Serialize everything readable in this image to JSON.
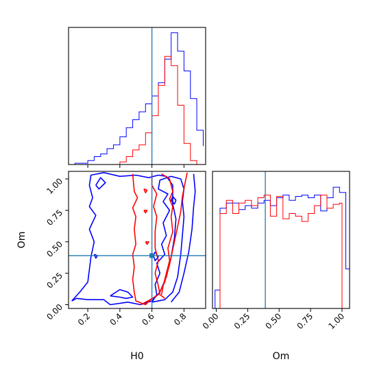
{
  "chart_data": {
    "type": "corner",
    "parameters": [
      "H0",
      "Om"
    ],
    "truth": {
      "H0": 0.6,
      "Om": 0.39,
      "color": "#1f77b4"
    },
    "series_colors": {
      "blue": "#0000ff",
      "red": "#ff0000"
    },
    "panels": [
      {
        "id": "hist-H0",
        "type": "histogram",
        "xlim": [
          0.08,
          0.935
        ],
        "ylim": [
          0,
          1.04
        ],
        "edges": [
          0.08,
          0.12,
          0.16,
          0.2,
          0.24,
          0.28,
          0.32,
          0.36,
          0.4,
          0.44,
          0.48,
          0.52,
          0.56,
          0.6,
          0.64,
          0.68,
          0.72,
          0.76,
          0.8,
          0.84,
          0.88,
          0.92
        ],
        "series": [
          {
            "color": "blue",
            "counts": [
              0,
              0.01,
              0.01,
              0.03,
              0.06,
              0.08,
              0.12,
              0.15,
              0.21,
              0.28,
              0.34,
              0.4,
              0.46,
              0.52,
              0.62,
              0.8,
              1.0,
              0.86,
              0.71,
              0.5,
              0.26,
              0.14
            ]
          },
          {
            "color": "red",
            "counts": [
              0,
              0,
              0,
              0,
              0,
              0,
              0,
              0,
              0.02,
              0.06,
              0.11,
              0.15,
              0.24,
              0.37,
              0.6,
              0.82,
              0.75,
              0.45,
              0.16,
              0.03,
              0,
              0
            ]
          }
        ]
      },
      {
        "id": "joint-H0-Om",
        "type": "contour",
        "xlabel": "H0",
        "ylabel": "Om",
        "xlim": [
          0.08,
          0.935
        ],
        "ylim": [
          -0.03,
          1.06
        ],
        "xticks": [
          0.2,
          0.4,
          0.6,
          0.8
        ],
        "xtick_labels": [
          "0.2",
          "0.4",
          "0.6",
          "0.8"
        ],
        "yticks": [
          0.0,
          0.25,
          0.5,
          0.75,
          1.0
        ],
        "ytick_labels": [
          "0.00",
          "0.25",
          "0.50",
          "0.75",
          "1.00"
        ],
        "contours": [
          {
            "color": "blue",
            "points": [
              [
                0.1,
                0.03
              ],
              [
                0.13,
                0.05
              ],
              [
                0.2,
                0.04
              ],
              [
                0.3,
                0.04
              ],
              [
                0.34,
                0.0
              ],
              [
                0.45,
                0.02
              ],
              [
                0.53,
                0.0
              ],
              [
                0.6,
                0.03
              ],
              [
                0.65,
                0.1
              ],
              [
                0.69,
                0.22
              ],
              [
                0.72,
                0.38
              ],
              [
                0.74,
                0.53
              ],
              [
                0.75,
                0.68
              ],
              [
                0.73,
                0.8
              ],
              [
                0.73,
                0.95
              ],
              [
                0.69,
                1.02
              ],
              [
                0.64,
                1.03
              ],
              [
                0.58,
                1.01
              ],
              [
                0.5,
                1.03
              ],
              [
                0.4,
                1.02
              ],
              [
                0.3,
                1.05
              ],
              [
                0.22,
                1.03
              ],
              [
                0.21,
                0.95
              ],
              [
                0.23,
                0.85
              ],
              [
                0.21,
                0.78
              ],
              [
                0.25,
                0.71
              ],
              [
                0.21,
                0.6
              ],
              [
                0.24,
                0.5
              ],
              [
                0.22,
                0.38
              ],
              [
                0.21,
                0.28
              ],
              [
                0.2,
                0.18
              ],
              [
                0.15,
                0.1
              ],
              [
                0.1,
                0.03
              ]
            ]
          },
          {
            "color": "blue",
            "points": [
              [
                0.34,
                0.07
              ],
              [
                0.4,
                0.06
              ],
              [
                0.44,
                0.05
              ],
              [
                0.48,
                0.06
              ],
              [
                0.45,
                0.1
              ],
              [
                0.4,
                0.12
              ],
              [
                0.34,
                0.07
              ]
            ]
          },
          {
            "color": "blue",
            "points": [
              [
                0.25,
                0.95
              ],
              [
                0.28,
                1.01
              ],
              [
                0.31,
                0.97
              ],
              [
                0.27,
                0.92
              ],
              [
                0.25,
                0.95
              ]
            ]
          },
          {
            "color": "blue",
            "points": [
              [
                0.24,
                0.4
              ],
              [
                0.26,
                0.39
              ],
              [
                0.25,
                0.37
              ],
              [
                0.24,
                0.4
              ]
            ]
          },
          {
            "color": "blue",
            "points": [
              [
                0.6,
                0.02
              ],
              [
                0.68,
                0.04
              ],
              [
                0.73,
                0.1
              ],
              [
                0.76,
                0.22
              ],
              [
                0.78,
                0.4
              ],
              [
                0.79,
                0.55
              ],
              [
                0.8,
                0.7
              ],
              [
                0.79,
                0.82
              ],
              [
                0.8,
                0.92
              ],
              [
                0.78,
                1.0
              ],
              [
                0.72,
                1.02
              ],
              [
                0.65,
                0.99
              ],
              [
                0.64,
                0.92
              ],
              [
                0.7,
                0.88
              ],
              [
                0.67,
                0.82
              ],
              [
                0.71,
                0.75
              ],
              [
                0.67,
                0.65
              ],
              [
                0.69,
                0.55
              ],
              [
                0.66,
                0.48
              ],
              [
                0.68,
                0.4
              ],
              [
                0.63,
                0.33
              ],
              [
                0.65,
                0.25
              ],
              [
                0.62,
                0.16
              ],
              [
                0.63,
                0.08
              ],
              [
                0.6,
                0.02
              ]
            ]
          },
          {
            "color": "blue",
            "points": [
              [
                0.62,
                0.42
              ],
              [
                0.64,
                0.38
              ],
              [
                0.62,
                0.35
              ],
              [
                0.61,
                0.39
              ],
              [
                0.62,
                0.42
              ]
            ]
          },
          {
            "color": "blue",
            "points": [
              [
                0.72,
                0.02
              ],
              [
                0.77,
                0.1
              ],
              [
                0.8,
                0.25
              ],
              [
                0.83,
                0.42
              ],
              [
                0.85,
                0.6
              ],
              [
                0.86,
                0.78
              ],
              [
                0.87,
                0.9
              ],
              [
                0.86,
                1.04
              ]
            ]
          },
          {
            "color": "blue",
            "points": [
              [
                0.73,
                0.86
              ],
              [
                0.75,
                0.83
              ],
              [
                0.74,
                0.8
              ],
              [
                0.72,
                0.83
              ],
              [
                0.73,
                0.86
              ]
            ]
          },
          {
            "color": "red",
            "points": [
              [
                0.53,
                0.0
              ],
              [
                0.59,
                0.04
              ],
              [
                0.64,
                0.08
              ],
              [
                0.68,
                0.18
              ],
              [
                0.71,
                0.32
              ],
              [
                0.74,
                0.5
              ],
              [
                0.76,
                0.62
              ],
              [
                0.78,
                0.74
              ],
              [
                0.79,
                0.86
              ],
              [
                0.81,
                0.99
              ],
              [
                0.82,
                1.05
              ]
            ]
          },
          {
            "color": "red",
            "points": [
              [
                0.48,
                1.04
              ],
              [
                0.49,
                0.9
              ],
              [
                0.51,
                0.85
              ],
              [
                0.48,
                0.77
              ],
              [
                0.5,
                0.7
              ],
              [
                0.49,
                0.6
              ],
              [
                0.5,
                0.48
              ],
              [
                0.48,
                0.4
              ],
              [
                0.49,
                0.3
              ],
              [
                0.48,
                0.2
              ],
              [
                0.49,
                0.1
              ],
              [
                0.5,
                0.03
              ],
              [
                0.56,
                0.0
              ],
              [
                0.6,
                0.05
              ]
            ]
          },
          {
            "color": "red",
            "points": [
              [
                0.6,
                1.04
              ],
              [
                0.6,
                0.95
              ],
              [
                0.63,
                0.88
              ],
              [
                0.61,
                0.78
              ],
              [
                0.63,
                0.7
              ],
              [
                0.62,
                0.58
              ],
              [
                0.62,
                0.45
              ],
              [
                0.64,
                0.35
              ],
              [
                0.62,
                0.25
              ],
              [
                0.64,
                0.15
              ],
              [
                0.65,
                0.08
              ],
              [
                0.68,
                0.05
              ]
            ]
          },
          {
            "color": "red",
            "points": [
              [
                0.66,
                1.04
              ],
              [
                0.71,
                1.0
              ],
              [
                0.73,
                0.9
              ],
              [
                0.71,
                0.84
              ],
              [
                0.73,
                0.78
              ],
              [
                0.72,
                0.7
              ],
              [
                0.73,
                0.58
              ],
              [
                0.7,
                0.45
              ],
              [
                0.71,
                0.35
              ],
              [
                0.69,
                0.25
              ],
              [
                0.67,
                0.15
              ],
              [
                0.66,
                0.08
              ]
            ]
          },
          {
            "color": "red",
            "points": [
              [
                0.55,
                0.75
              ],
              [
                0.57,
                0.75
              ],
              [
                0.56,
                0.73
              ],
              [
                0.55,
                0.75
              ]
            ]
          },
          {
            "color": "red",
            "points": [
              [
                0.56,
                0.5
              ],
              [
                0.58,
                0.5
              ],
              [
                0.57,
                0.48
              ],
              [
                0.56,
                0.5
              ]
            ]
          },
          {
            "color": "red",
            "points": [
              [
                0.55,
                0.92
              ],
              [
                0.57,
                0.91
              ],
              [
                0.56,
                0.89
              ],
              [
                0.55,
                0.92
              ]
            ]
          }
        ]
      },
      {
        "id": "hist-Om",
        "type": "histogram",
        "xlabel": "Om",
        "xlim": [
          -0.03,
          1.06
        ],
        "ylim": [
          0,
          1.04
        ],
        "xticks": [
          0.0,
          0.25,
          0.5,
          0.75,
          1.0
        ],
        "xtick_labels": [
          "0.00",
          "0.25",
          "0.50",
          "0.75",
          "1.00"
        ],
        "edges": [
          -0.01,
          0.03,
          0.08,
          0.13,
          0.18,
          0.23,
          0.28,
          0.33,
          0.38,
          0.43,
          0.48,
          0.53,
          0.58,
          0.63,
          0.68,
          0.73,
          0.78,
          0.83,
          0.88,
          0.93,
          0.98,
          1.0,
          1.03,
          1.06
        ],
        "series": [
          {
            "color": "blue",
            "counts": [
              0.14,
              0.76,
              0.8,
              0.8,
              0.75,
              0.78,
              0.76,
              0.8,
              0.82,
              0.78,
              0.84,
              0.86,
              0.82,
              0.85,
              0.86,
              0.84,
              0.86,
              0.74,
              0.84,
              0.92,
              0.88,
              0.88,
              0.3
            ]
          },
          {
            "color": "red",
            "counts": [
              0,
              0.72,
              0.82,
              0.72,
              0.8,
              0.82,
              0.78,
              0.84,
              0.86,
              0.7,
              0.85,
              0.68,
              0.72,
              0.7,
              0.66,
              0.72,
              0.78,
              0.86,
              0.76,
              0.79,
              0.8,
              0,
              0
            ]
          }
        ]
      }
    ]
  }
}
